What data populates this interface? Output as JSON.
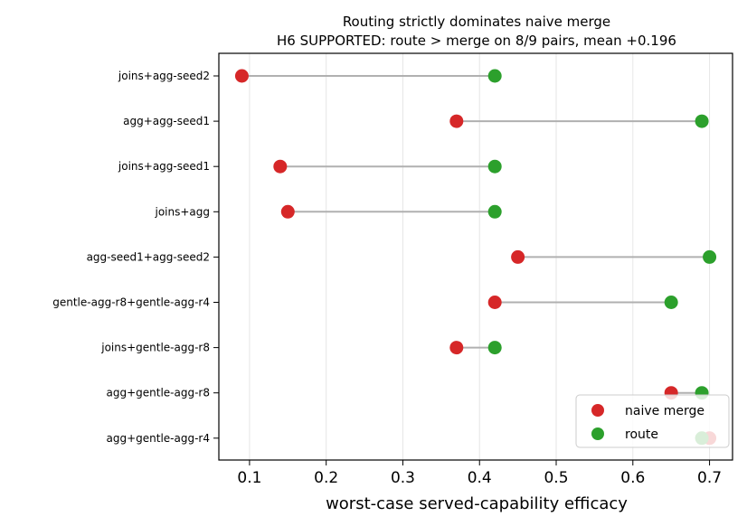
{
  "chart_data": {
    "type": "dumbbell",
    "title": "Routing strictly dominates naive merge",
    "subtitle": "H6 SUPPORTED: route > merge on 8/9 pairs, mean +0.196",
    "xlabel": "worst-case served-capability efficacy",
    "ylabel": "",
    "xlim": [
      0.06,
      0.73
    ],
    "xticks": [
      0.1,
      0.2,
      0.3,
      0.4,
      0.5,
      0.6,
      0.7
    ],
    "xtick_labels": [
      "0.1",
      "0.2",
      "0.3",
      "0.4",
      "0.5",
      "0.6",
      "0.7"
    ],
    "grid": "vertical",
    "legend_position": "bottom-right",
    "categories": [
      "joins+agg-seed2",
      "agg+agg-seed1",
      "joins+agg-seed1",
      "joins+agg",
      "agg-seed1+agg-seed2",
      "gentle-agg-r8+gentle-agg-r4",
      "joins+gentle-agg-r8",
      "agg+gentle-agg-r8",
      "agg+gentle-agg-r4"
    ],
    "series": [
      {
        "name": "naive merge",
        "color": "#d62728",
        "values": [
          0.09,
          0.37,
          0.14,
          0.15,
          0.45,
          0.42,
          0.37,
          0.65,
          0.7
        ]
      },
      {
        "name": "route",
        "color": "#2ca02c",
        "values": [
          0.42,
          0.69,
          0.42,
          0.42,
          0.7,
          0.65,
          0.42,
          0.69,
          0.69
        ]
      }
    ],
    "connector_color": "#b0b0b0"
  }
}
